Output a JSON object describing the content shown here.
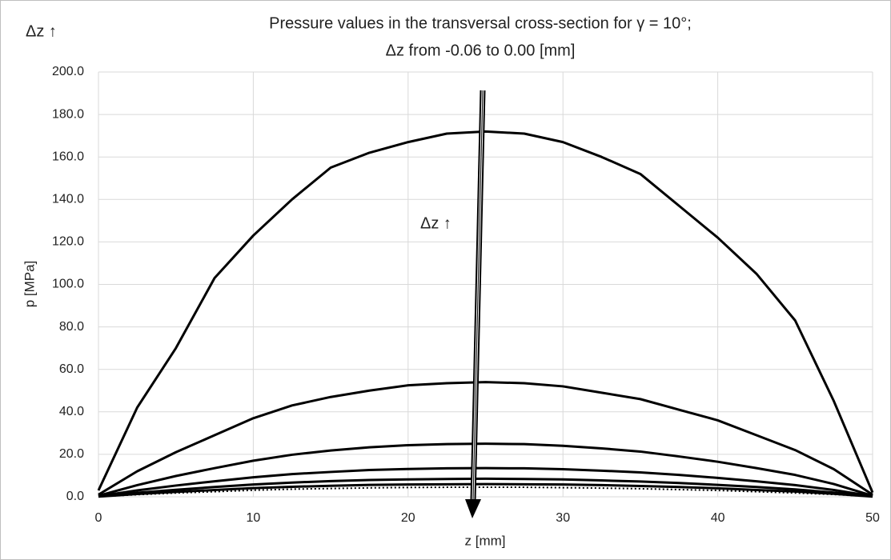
{
  "chart_data": {
    "type": "line",
    "title": "Pressure values in the transversal cross-section for γ = 10°;",
    "subtitle": "Δz from -0.06 to 0.00 [mm]",
    "corner_annotation": "Δz ↑",
    "arrow_annotation": "Δz ↑",
    "xlabel": "z [mm]",
    "ylabel": "p [MPa]",
    "x": [
      0,
      2.5,
      5,
      7.5,
      10,
      12.5,
      15,
      17.5,
      20,
      22.5,
      25,
      27.5,
      30,
      32.5,
      35,
      37.5,
      40,
      42.5,
      45,
      47.5,
      50
    ],
    "series": [
      {
        "color": "#000000",
        "values": [
          3,
          42,
          70,
          103,
          123,
          140,
          155,
          162,
          167,
          171,
          172,
          171,
          167,
          160,
          152,
          137,
          122,
          105,
          83,
          45,
          2
        ]
      },
      {
        "color": "#000000",
        "values": [
          1,
          12,
          21,
          29,
          37,
          43,
          47,
          50,
          52.5,
          53.5,
          54,
          53.5,
          52,
          49,
          46,
          41,
          36,
          29,
          22,
          13,
          1
        ]
      },
      {
        "color": "#000000",
        "values": [
          0.5,
          5.5,
          9.8,
          13.5,
          17,
          19.8,
          21.8,
          23.3,
          24.3,
          24.8,
          25,
          24.8,
          24,
          22.8,
          21.3,
          19,
          16.5,
          13.5,
          10.3,
          6,
          0.5
        ]
      },
      {
        "color": "#000000",
        "values": [
          0.3,
          3,
          5.3,
          7.3,
          9.2,
          10.7,
          11.7,
          12.6,
          13.1,
          13.4,
          13.5,
          13.4,
          13,
          12.3,
          11.5,
          10.3,
          8.9,
          7.3,
          5.5,
          3.2,
          0.3
        ]
      },
      {
        "color": "#000000",
        "values": [
          0.2,
          1.9,
          3.3,
          4.6,
          5.8,
          6.7,
          7.4,
          7.9,
          8.2,
          8.4,
          8.5,
          8.4,
          8.2,
          7.7,
          7.2,
          6.5,
          5.6,
          4.6,
          3.5,
          2,
          0.2
        ]
      },
      {
        "color": "#000000",
        "values": [
          0.1,
          1.3,
          2.3,
          3.2,
          4.1,
          4.7,
          5.2,
          5.6,
          5.8,
          5.9,
          6,
          5.9,
          5.8,
          5.5,
          5.1,
          4.6,
          4,
          3.2,
          2.5,
          1.4,
          0.1
        ]
      },
      {
        "color": "#000000",
        "style": "dotted",
        "values": [
          0.1,
          1,
          1.8,
          2.4,
          3.1,
          3.6,
          3.9,
          4.2,
          4.4,
          4.5,
          4.5,
          4.5,
          4.3,
          4.1,
          3.8,
          3.4,
          3,
          2.4,
          1.8,
          1.1,
          0.1
        ]
      }
    ],
    "xlim": [
      0,
      50
    ],
    "xticks": [
      0,
      10,
      20,
      30,
      40,
      50
    ],
    "ylim": [
      0,
      200
    ],
    "yticks": [
      {
        "value": 0,
        "label": "0.0"
      },
      {
        "value": 20,
        "label": "20.0"
      },
      {
        "value": 40,
        "label": "40.0"
      },
      {
        "value": 60,
        "label": "60.0"
      },
      {
        "value": 80,
        "label": "80.0"
      },
      {
        "value": 100,
        "label": "100.0"
      },
      {
        "value": 120,
        "label": "120.0"
      },
      {
        "value": 140,
        "label": "140.0"
      },
      {
        "value": 160,
        "label": "160.0"
      },
      {
        "value": 180,
        "label": "180.0"
      },
      {
        "value": 200,
        "label": "200.0"
      }
    ],
    "grid": true
  }
}
